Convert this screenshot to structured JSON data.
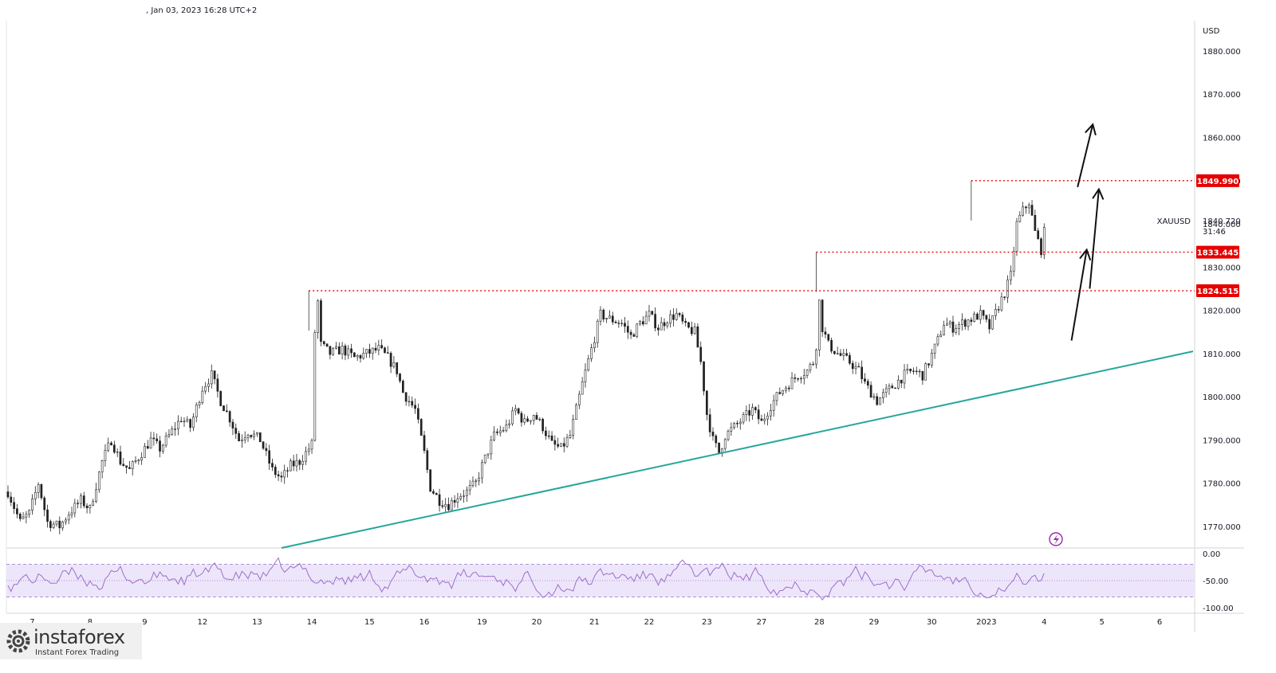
{
  "header": {
    "timestamp": ", Jan 03, 2023 16:28 UTC+2"
  },
  "logo": {
    "brand": "instaforex",
    "tagline": "Instant Forex Trading"
  },
  "colors": {
    "up_candle": "#222222",
    "trendline": "#26a69a",
    "level_line": "#e60000",
    "price_tag_bg": "#e60000",
    "rsi_line": "#9c6fc8",
    "rsi_band": "#ede6fb",
    "arrow": "#111111",
    "logo_bg": "#f0f0f0"
  },
  "icons": [
    "lightning-icon",
    "logo-gear-icon"
  ],
  "chart_data": [
    {
      "type": "candlestick",
      "symbol": "XAUUSD",
      "currency": "USD",
      "last_price": "1840.720",
      "countdown": "31:46",
      "ylim": [
        1765,
        1887
      ],
      "yticks": [
        "1880.000",
        "1870.000",
        "1860.000",
        "1850.000",
        "1840.000",
        "1830.000",
        "1820.000",
        "1810.000",
        "1800.000",
        "1790.000",
        "1780.000",
        "1770.000"
      ],
      "xticks": [
        "7",
        "8",
        "9",
        "12",
        "13",
        "14",
        "15",
        "16",
        "19",
        "20",
        "21",
        "22",
        "23",
        "27",
        "28",
        "29",
        "30",
        "2023",
        "4",
        "5",
        "6"
      ],
      "xtick_index": [
        8,
        27,
        45,
        64,
        82,
        100,
        119,
        137,
        156,
        174,
        193,
        211,
        230,
        248,
        267,
        285,
        304,
        322,
        341,
        360,
        379
      ],
      "levels": [
        {
          "label": "1849.990",
          "price": 1849.99,
          "start_index": 317
        },
        {
          "label": "1833.445",
          "price": 1833.445,
          "start_index": 266
        },
        {
          "label": "1824.515",
          "price": 1824.515,
          "start_index": 99
        }
      ],
      "trendline": {
        "from": {
          "index": 90,
          "price": 1765
        },
        "to": {
          "index": 390,
          "price": 1810.5
        }
      },
      "arrows": [
        {
          "from": {
            "index": 350,
            "price": 1813
          },
          "to": {
            "index": 355,
            "price": 1834
          }
        },
        {
          "from": {
            "index": 356,
            "price": 1825
          },
          "to": {
            "index": 359,
            "price": 1848
          }
        },
        {
          "from": {
            "index": 352,
            "price": 1848.5
          },
          "to": {
            "index": 357,
            "price": 1863
          }
        }
      ],
      "anchors": [
        [
          0,
          1778
        ],
        [
          4,
          1771
        ],
        [
          7,
          1773
        ],
        [
          10,
          1780
        ],
        [
          13,
          1771
        ],
        [
          17,
          1770
        ],
        [
          20,
          1773
        ],
        [
          24,
          1776
        ],
        [
          27,
          1774
        ],
        [
          31,
          1785
        ],
        [
          34,
          1790
        ],
        [
          37,
          1785
        ],
        [
          40,
          1783
        ],
        [
          43,
          1786
        ],
        [
          47,
          1790
        ],
        [
          50,
          1788
        ],
        [
          53,
          1791
        ],
        [
          57,
          1795
        ],
        [
          60,
          1793
        ],
        [
          64,
          1802
        ],
        [
          67,
          1805
        ],
        [
          70,
          1799
        ],
        [
          73,
          1795
        ],
        [
          76,
          1790
        ],
        [
          79,
          1792
        ],
        [
          83,
          1790
        ],
        [
          87,
          1783
        ],
        [
          90,
          1781
        ],
        [
          93,
          1784
        ],
        [
          96,
          1785
        ],
        [
          99,
          1788
        ],
        [
          100,
          1789
        ],
        [
          101,
          1815
        ],
        [
          102,
          1822
        ],
        [
          103,
          1812
        ],
        [
          106,
          1810
        ],
        [
          110,
          1811
        ],
        [
          114,
          1809
        ],
        [
          118,
          1810
        ],
        [
          122,
          1811
        ],
        [
          125,
          1809
        ],
        [
          128,
          1806
        ],
        [
          130,
          1801
        ],
        [
          134,
          1797
        ],
        [
          137,
          1787
        ],
        [
          139,
          1779
        ],
        [
          142,
          1776
        ],
        [
          145,
          1775
        ],
        [
          148,
          1777
        ],
        [
          151,
          1778
        ],
        [
          154,
          1780
        ],
        [
          156,
          1784
        ],
        [
          160,
          1791
        ],
        [
          164,
          1793
        ],
        [
          167,
          1797
        ],
        [
          170,
          1794
        ],
        [
          173,
          1796
        ],
        [
          176,
          1793
        ],
        [
          179,
          1789
        ],
        [
          182,
          1788
        ],
        [
          185,
          1791
        ],
        [
          189,
          1803
        ],
        [
          192,
          1811
        ],
        [
          195,
          1819
        ],
        [
          198,
          1818
        ],
        [
          202,
          1817
        ],
        [
          205,
          1814
        ],
        [
          208,
          1817
        ],
        [
          211,
          1819
        ],
        [
          214,
          1816
        ],
        [
          217,
          1818
        ],
        [
          220,
          1819
        ],
        [
          223,
          1816
        ],
        [
          226,
          1815
        ],
        [
          228,
          1808
        ],
        [
          230,
          1796
        ],
        [
          232,
          1790
        ],
        [
          234,
          1787
        ],
        [
          236,
          1791
        ],
        [
          239,
          1793
        ],
        [
          242,
          1795
        ],
        [
          245,
          1797
        ],
        [
          248,
          1794
        ],
        [
          251,
          1798
        ],
        [
          254,
          1801
        ],
        [
          257,
          1803
        ],
        [
          260,
          1805
        ],
        [
          263,
          1806
        ],
        [
          265,
          1808
        ],
        [
          266,
          1812
        ],
        [
          267,
          1822
        ],
        [
          268,
          1816
        ],
        [
          270,
          1812
        ],
        [
          273,
          1810
        ],
        [
          277,
          1808
        ],
        [
          280,
          1806
        ],
        [
          282,
          1803
        ],
        [
          284,
          1801
        ],
        [
          286,
          1799
        ],
        [
          289,
          1801
        ],
        [
          292,
          1803
        ],
        [
          295,
          1805
        ],
        [
          298,
          1806
        ],
        [
          301,
          1805
        ],
        [
          303,
          1808
        ],
        [
          306,
          1813
        ],
        [
          308,
          1817
        ],
        [
          311,
          1816
        ],
        [
          314,
          1817
        ],
        [
          317,
          1818
        ],
        [
          320,
          1819
        ],
        [
          323,
          1816
        ],
        [
          326,
          1821
        ],
        [
          328,
          1824
        ],
        [
          330,
          1828
        ],
        [
          332,
          1840
        ],
        [
          334,
          1843
        ],
        [
          336,
          1845
        ],
        [
          338,
          1838
        ],
        [
          340,
          1834
        ],
        [
          341,
          1838
        ]
      ]
    },
    {
      "type": "line",
      "name": "RSI panel",
      "ylim": [
        -110,
        10
      ],
      "yticks": [
        "0.00",
        "-50.00",
        "-100.00"
      ],
      "bands": [
        -20,
        -50,
        -80
      ]
    }
  ]
}
